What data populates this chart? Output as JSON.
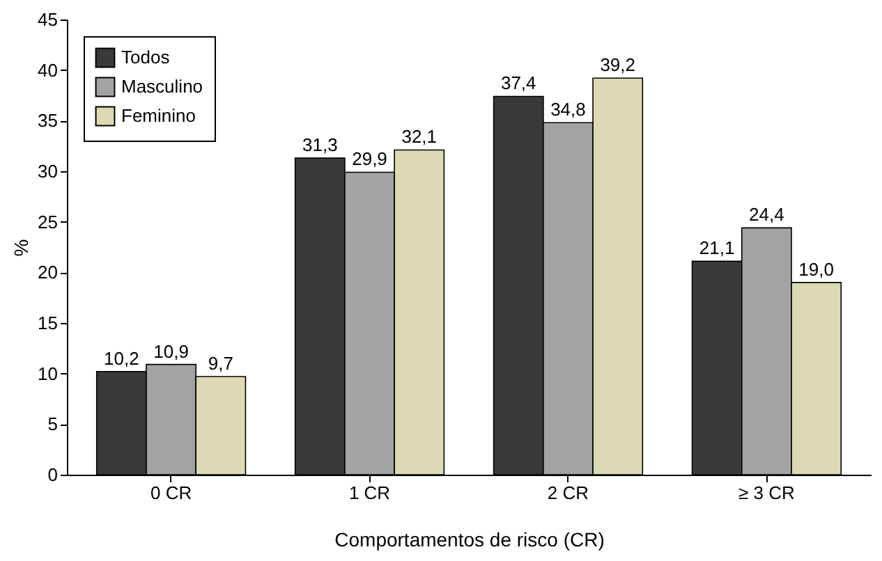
{
  "chart_data": {
    "type": "bar",
    "xlabel": "Comportamentos de risco (CR)",
    "ylabel": "%",
    "categories": [
      "0 CR",
      "1 CR",
      "2 CR",
      "≥ 3 CR"
    ],
    "series": [
      {
        "name": "Todos",
        "color": "#3a3a3a",
        "values": [
          10.2,
          31.3,
          37.4,
          21.1
        ],
        "value_labels": [
          "10,2",
          "31,3",
          "37,4",
          "21,1"
        ]
      },
      {
        "name": "Masculino",
        "color": "#a3a3a3",
        "values": [
          10.9,
          29.9,
          34.8,
          24.4
        ],
        "value_labels": [
          "10,9",
          "29,9",
          "34,8",
          "24,4"
        ]
      },
      {
        "name": "Feminino",
        "color": "#dcd9b4",
        "values": [
          9.7,
          32.1,
          39.2,
          19.0
        ],
        "value_labels": [
          "9,7",
          "32,1",
          "39,2",
          "19,0"
        ]
      }
    ],
    "ylim": [
      0,
      45
    ],
    "yticks": [
      0,
      5,
      10,
      15,
      20,
      25,
      30,
      35,
      40,
      45
    ],
    "grid": false,
    "legend": "top left"
  }
}
